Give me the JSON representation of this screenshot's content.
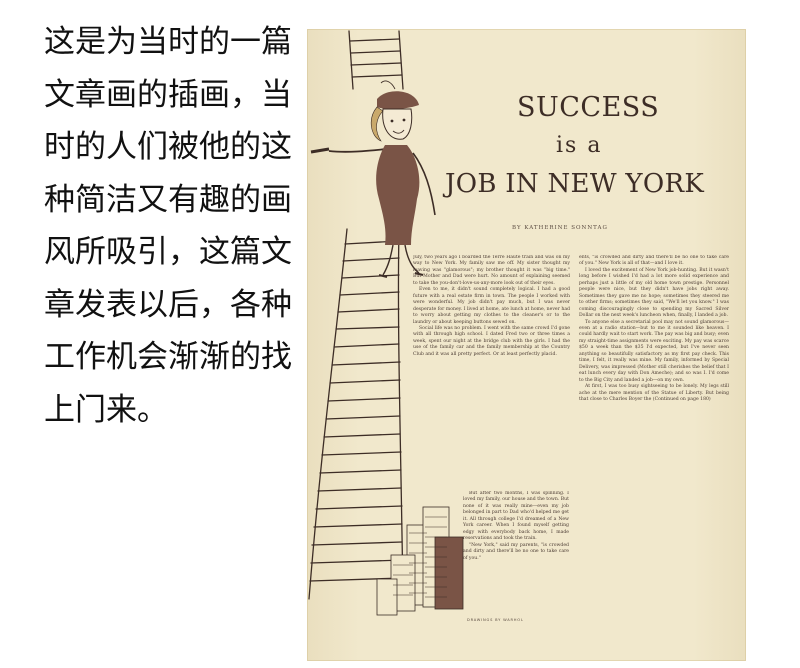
{
  "caption": {
    "lines": [
      "这是为当时的一篇",
      "文章画的插画，当",
      "时的人们被他的这",
      "种简洁又有趣的画",
      "风所吸引，这篇文",
      "章发表以后，各种",
      "工作机会渐渐的找",
      "上门来。"
    ]
  },
  "magazine_page": {
    "title": {
      "line1": "SUCCESS",
      "line2": "is a",
      "line3": "JOB IN NEW YORK"
    },
    "byline": "BY KATHERINE SONNTAG",
    "column_left": {
      "paragraphs": [
        "July, two years ago I boarded the Terre Haute train and was on my way to New York. My family saw me off. My sister thought my leaving was \"glamorous\"; my brother thought it was \"big time.\" But Mother and Dad were hurt. No amount of explaining seemed to take the you-don't-love-us-any-more look out of their eyes.",
        "Even to me, it didn't sound completely logical. I had a good future with a real estate firm in town. The people I worked with were wonderful. My job didn't pay much, but I was never desperate for money. I lived at home, ate lunch at home, never had to worry about getting my clothes to the cleaner's or to the laundry or about keeping buttons sewed on.",
        "Social life was no problem. I went with the same crowd I'd gone with all through high school. I dated Fred two or three times a week, spent our night at the bridge club with the girls. I had the use of the family car and the family membership at the Country Club and it was all pretty perfect. Or at least perfectly placid."
      ]
    },
    "column_left_lower": {
      "paragraphs": [
        "But after two months, I was spinning. I loved my family, our house and the town. But none of it was really mine—even my job belonged in part to Dad who'd helped me get it. All through college I'd dreamed of a New York career. When I found myself getting edgy with everybody back home, I made reservations and took the train.",
        "\"New York,\" said my parents, \"is crowded and dirty and there'll be no one to take care of you.\""
      ]
    },
    "column_right": {
      "paragraphs": [
        "ents, \"is crowded and dirty and there'll be no one to take care of you.\" New York is all of that—and I love it.",
        "I loved the excitement of New York job-hunting. But it wasn't long before I wished I'd had a lot more solid experience and perhaps just a little of my old home town prestige. Personnel people were nice, but they didn't have jobs right away. Sometimes they gave me no hope; sometimes they steered me to other firms; sometimes they said, \"We'll let you know.\" I was coming discouragingly close to spending my Sacred Silver Dollar on the next week's luncheon when, finally, I landed a job.",
        "To anyone else a secretarial pool may not sound glamorous—even at a radio station—but to me it sounded like heaven. I could hardly wait to start work. The pay was big and busy; even my straight-time assignments were exciting. My pay was scarce $50 a week than the $35 I'd expected, but I've never seen anything so beautifully satisfactory as my first pay check. This time, I felt, it really was mine. My family, informed by Special Delivery, was impressed (Mother still cherishes the belief that I eat lunch every day with Don Ameche); and so was I. I'd come to the Big City and landed a job—on my own.",
        "At first, I was too busy sightseeing to be lonely. My legs still ache at the mere mention of the Statue of Liberty. But being that close to Charles Boyer the (Continued on page 180)"
      ]
    },
    "credit": "DRAWINGS BY WARHOL"
  },
  "colors": {
    "paper": "#f1e8cc",
    "ink": "#3d2d26",
    "illustration_brown": "#7a5446"
  }
}
